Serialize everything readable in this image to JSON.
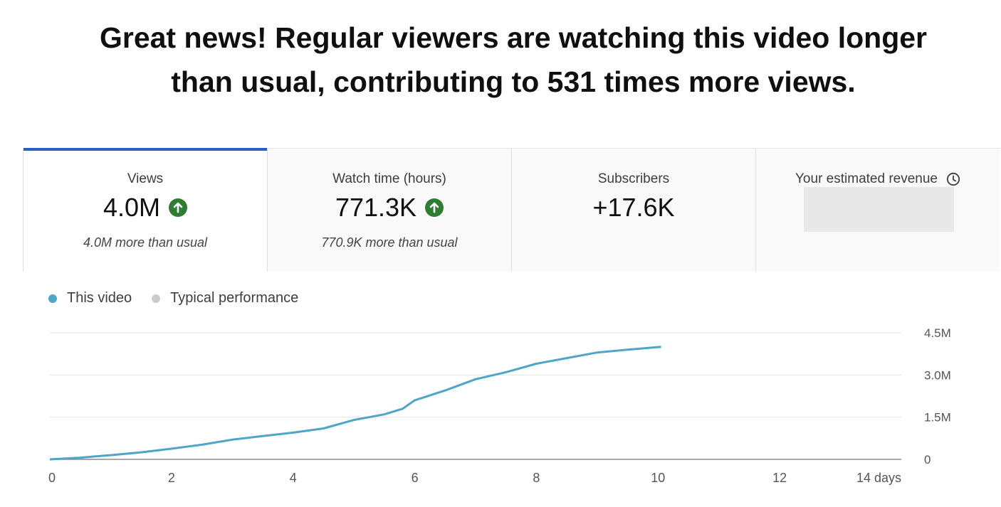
{
  "headline": {
    "line1": "Great news! Regular viewers are watching this video longer",
    "line2": "than usual, contributing to 531 times more views."
  },
  "metrics": [
    {
      "label": "Views",
      "value": "4.0M",
      "trend": "up",
      "note": "4.0M more than usual",
      "selected": true
    },
    {
      "label": "Watch time (hours)",
      "value": "771.3K",
      "trend": "up",
      "note": "770.9K more than usual",
      "selected": false
    },
    {
      "label": "Subscribers",
      "value": "+17.6K",
      "trend": "",
      "note": "",
      "selected": false
    },
    {
      "label": "Your estimated revenue",
      "value": "",
      "trend": "",
      "note": "",
      "selected": false,
      "icon": "clock-icon"
    }
  ],
  "legend": {
    "this_video": "This video",
    "typical": "Typical performance"
  },
  "colors": {
    "accent": "#2b5fc7",
    "this_video": "#4ea5c8",
    "typical": "#cccccc",
    "trend_up": "#2e7d32"
  },
  "chart_data": {
    "type": "line",
    "x_ticks": [
      "0",
      "2",
      "4",
      "6",
      "8",
      "10",
      "12",
      "14 days"
    ],
    "y_ticks": [
      "0",
      "1.5M",
      "3.0M",
      "4.5M"
    ],
    "xlim": [
      0,
      14
    ],
    "ylim": [
      0,
      4500000
    ],
    "series": [
      {
        "name": "This video",
        "x": [
          0,
          0.5,
          1,
          1.5,
          2,
          2.5,
          3,
          3.5,
          4,
          4.5,
          5,
          5.5,
          5.8,
          6,
          6.5,
          7,
          7.5,
          8,
          8.5,
          9,
          9.5,
          10.05
        ],
        "y": [
          0,
          60000,
          150000,
          250000,
          380000,
          520000,
          700000,
          830000,
          950000,
          1100000,
          1400000,
          1600000,
          1800000,
          2100000,
          2450000,
          2850000,
          3100000,
          3400000,
          3600000,
          3800000,
          3900000,
          4000000
        ]
      }
    ],
    "grid": true,
    "legend_position": "top-left"
  }
}
